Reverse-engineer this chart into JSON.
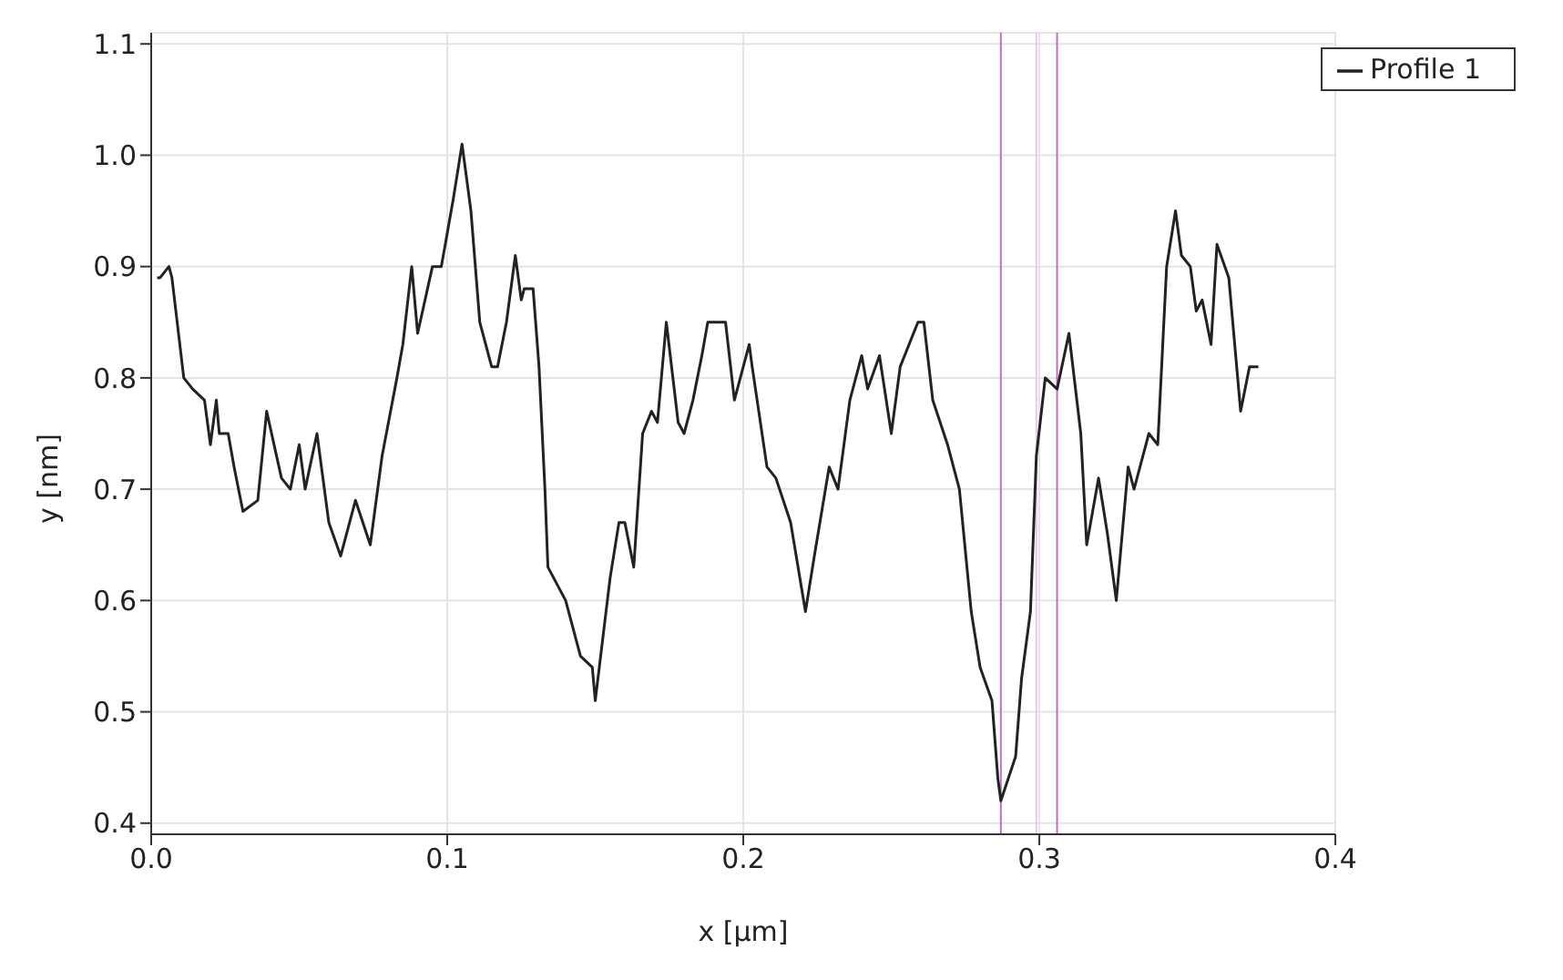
{
  "chart_data": {
    "type": "line",
    "xlabel": "x [µm]",
    "ylabel": "y [nm]",
    "xlim": [
      0,
      0.4
    ],
    "xticks": [
      {
        "value": 0,
        "label": "0.0"
      },
      0.1,
      0.2,
      0.3,
      0.4
    ],
    "ylim": [
      0.39,
      1.11
    ],
    "yticks": [
      0.4,
      0.5,
      0.6,
      0.7,
      0.8,
      0.9,
      {
        "value": 1,
        "label": "1.0"
      },
      1.1
    ],
    "grid": true,
    "legend": "top right",
    "marker": "none",
    "line_style": "solid",
    "ref_lines": [
      {
        "axis": "x",
        "value": 0.287,
        "color": "#c070c0"
      },
      {
        "axis": "x",
        "value": 0.299,
        "color": "#e8c8e8"
      },
      {
        "axis": "x",
        "value": 0.306,
        "color": "#c070c0"
      }
    ],
    "series": [
      {
        "name": "Profile 1",
        "color": "#222222",
        "x": [
          0.002,
          0.003,
          0.006,
          0.007,
          0.011,
          0.014,
          0.018,
          0.02,
          0.022,
          0.023,
          0.026,
          0.028,
          0.031,
          0.036,
          0.039,
          0.044,
          0.047,
          0.05,
          0.052,
          0.056,
          0.06,
          0.064,
          0.069,
          0.074,
          0.078,
          0.083,
          0.085,
          0.088,
          0.09,
          0.095,
          0.098,
          0.102,
          0.105,
          0.108,
          0.111,
          0.115,
          0.117,
          0.12,
          0.123,
          0.125,
          0.126,
          0.129,
          0.131,
          0.133,
          0.134,
          0.14,
          0.145,
          0.149,
          0.15,
          0.155,
          0.158,
          0.16,
          0.163,
          0.166,
          0.169,
          0.171,
          0.174,
          0.178,
          0.18,
          0.183,
          0.186,
          0.188,
          0.194,
          0.197,
          0.202,
          0.203,
          0.208,
          0.211,
          0.216,
          0.221,
          0.224,
          0.229,
          0.232,
          0.236,
          0.24,
          0.242,
          0.246,
          0.25,
          0.253,
          0.259,
          0.261,
          0.264,
          0.269,
          0.273,
          0.277,
          0.28,
          0.284,
          0.286,
          0.287,
          0.292,
          0.294,
          0.297,
          0.299,
          0.302,
          0.306,
          0.31,
          0.314,
          0.316,
          0.32,
          0.323,
          0.326,
          0.33,
          0.332,
          0.337,
          0.34,
          0.343,
          0.346,
          0.348,
          0.351,
          0.353,
          0.355,
          0.358,
          0.36,
          0.364,
          0.368,
          0.371,
          0.374
        ],
        "values": [
          0.89,
          0.89,
          0.9,
          0.89,
          0.8,
          0.79,
          0.78,
          0.74,
          0.78,
          0.75,
          0.75,
          0.72,
          0.68,
          0.69,
          0.77,
          0.71,
          0.7,
          0.74,
          0.7,
          0.75,
          0.67,
          0.64,
          0.69,
          0.65,
          0.73,
          0.8,
          0.83,
          0.9,
          0.84,
          0.9,
          0.9,
          0.96,
          1.01,
          0.95,
          0.85,
          0.81,
          0.81,
          0.85,
          0.91,
          0.87,
          0.88,
          0.88,
          0.81,
          0.7,
          0.63,
          0.6,
          0.55,
          0.54,
          0.51,
          0.62,
          0.67,
          0.67,
          0.63,
          0.75,
          0.77,
          0.76,
          0.85,
          0.76,
          0.75,
          0.78,
          0.82,
          0.85,
          0.85,
          0.78,
          0.83,
          0.81,
          0.72,
          0.71,
          0.67,
          0.59,
          0.64,
          0.72,
          0.7,
          0.78,
          0.82,
          0.79,
          0.82,
          0.75,
          0.81,
          0.85,
          0.85,
          0.78,
          0.74,
          0.7,
          0.59,
          0.54,
          0.51,
          0.44,
          0.42,
          0.46,
          0.53,
          0.59,
          0.73,
          0.8,
          0.79,
          0.84,
          0.75,
          0.65,
          0.71,
          0.66,
          0.6,
          0.72,
          0.7,
          0.75,
          0.74,
          0.9,
          0.95,
          0.91,
          0.9,
          0.86,
          0.87,
          0.83,
          0.92,
          0.89,
          0.77,
          0.81,
          0.81
        ]
      }
    ]
  }
}
